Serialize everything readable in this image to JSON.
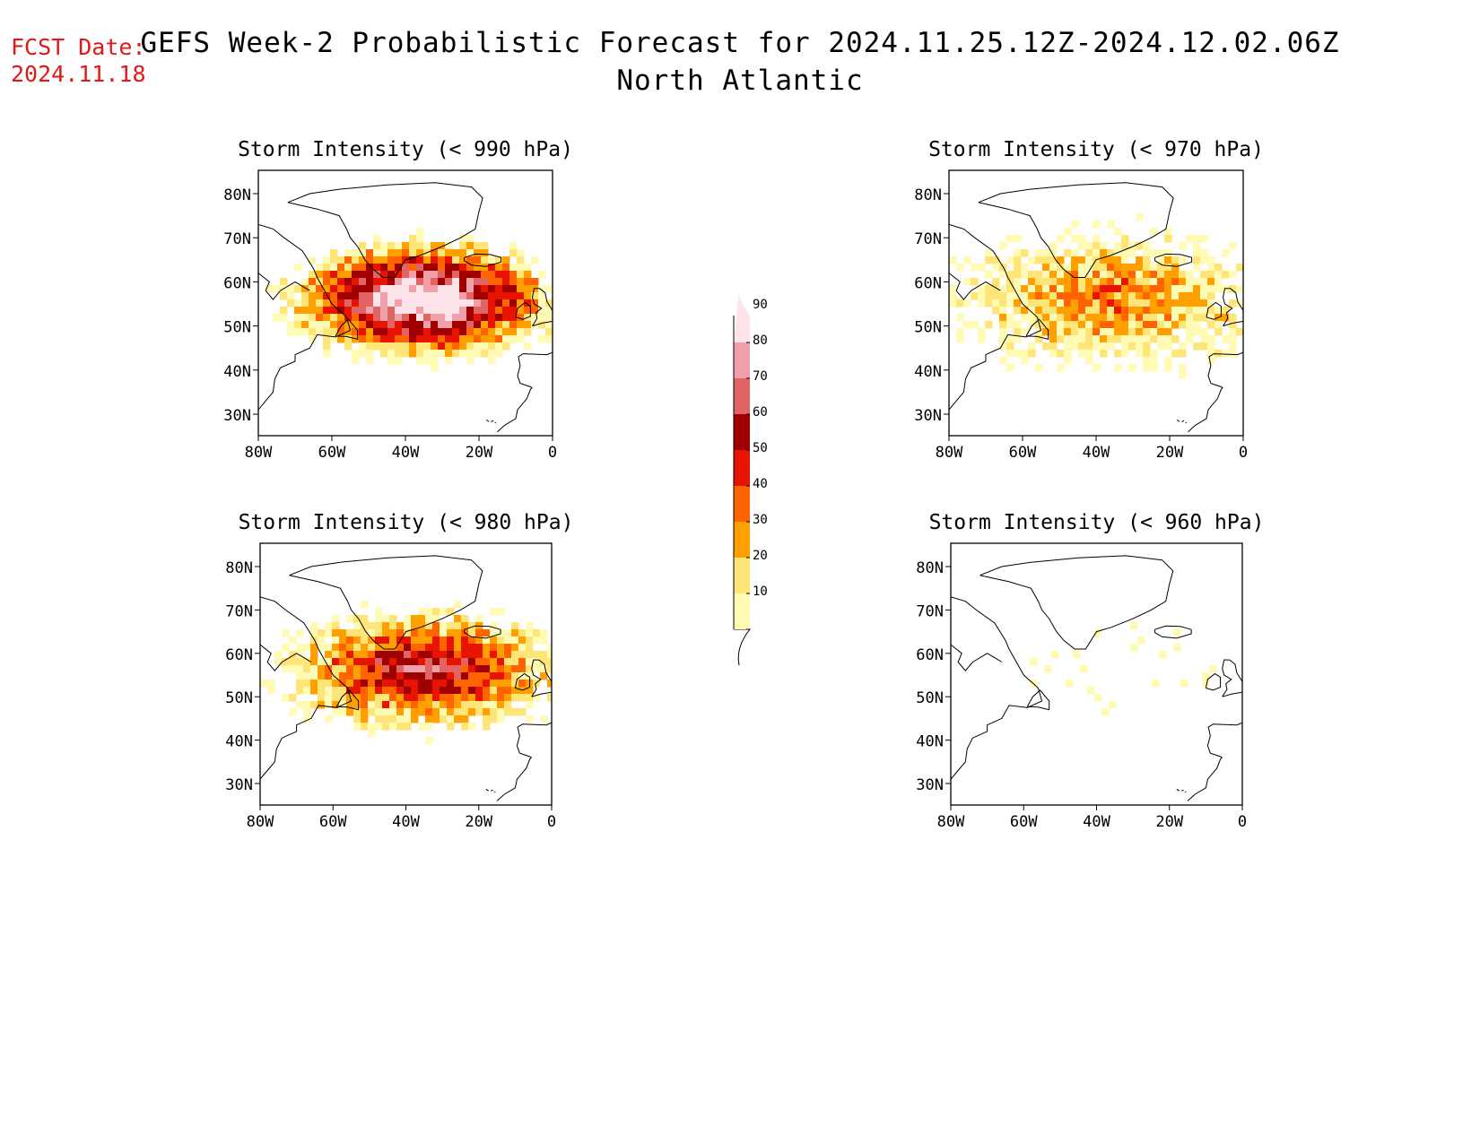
{
  "header": {
    "fcst_label": "FCST Date:",
    "fcst_date": "2024.11.18",
    "title_line1": "GEFS Week-2 Probabilistic Forecast for 2024.11.25.12Z-2024.12.02.06Z",
    "title_line2": "North Atlantic"
  },
  "axes": {
    "lat_labels": [
      "80N",
      "70N",
      "60N",
      "50N",
      "40N",
      "30N"
    ],
    "lon_labels": [
      "80W",
      "60W",
      "40W",
      "20W",
      "0"
    ]
  },
  "colorbar": {
    "levels": [
      "10",
      "20",
      "30",
      "40",
      "50",
      "60",
      "70",
      "80",
      "90"
    ],
    "colors": [
      "#fffab4",
      "#ffe478",
      "#ffa000",
      "#ff6400",
      "#e61400",
      "#a00000",
      "#e06464",
      "#f0a0a8",
      "#fce4e8"
    ]
  },
  "panels": [
    {
      "title": "Storm Intensity (< 990 hPa)",
      "intensity": 0.95
    },
    {
      "title": "Storm Intensity (< 970 hPa)",
      "intensity": 0.32
    },
    {
      "title": "Storm Intensity (< 980 hPa)",
      "intensity": 0.62
    },
    {
      "title": "Storm Intensity (< 960 hPa)",
      "intensity": 0.12
    }
  ]
}
